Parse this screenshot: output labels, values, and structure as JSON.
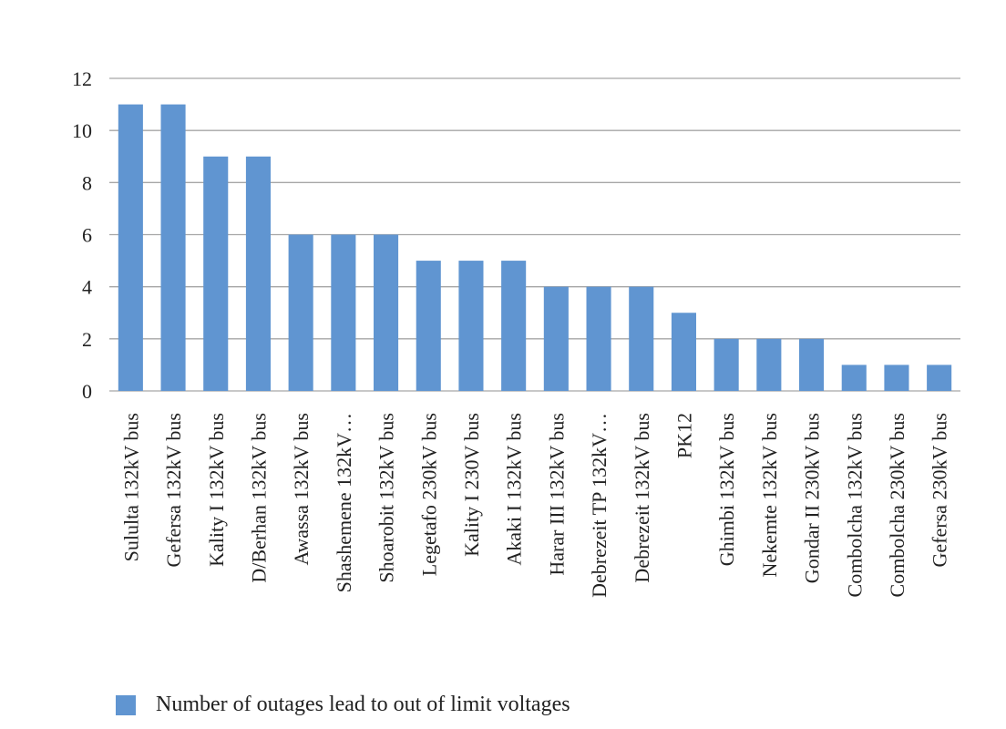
{
  "chart_data": {
    "type": "bar",
    "categories": [
      "Sululta 132kV bus",
      "Gefersa 132kV bus",
      "Kality I 132kV bus",
      "D/Berhan 132kV bus",
      "Awassa 132kV bus",
      "Shashemene 132kV…",
      "Shoarobit 132kV bus",
      "Legetafo 230kV bus",
      "Kality I 230V bus",
      "Akaki I 132kV bus",
      "Harar III 132kV bus",
      "Debrezeit TP 132kV…",
      "Debrezeit 132kV bus",
      "PK12",
      "Ghimbi 132kV bus",
      "Nekemte 132kV bus",
      "Gondar II 230kV bus",
      "Combolcha 132kV bus",
      "Combolcha 230kV bus",
      "Gefersa 230kV bus"
    ],
    "series": [
      {
        "name": "Number of outages lead to out of limit voltages",
        "values": [
          11,
          11,
          9,
          9,
          6,
          6,
          6,
          5,
          5,
          5,
          4,
          4,
          4,
          3,
          2,
          2,
          2,
          1,
          1,
          1
        ]
      }
    ],
    "ylim": [
      0,
      12
    ],
    "yticks": [
      0,
      2,
      4,
      6,
      8,
      10,
      12
    ],
    "grid": true,
    "legend_position": "bottom-left",
    "bar_color": "#6095d1",
    "grid_color": "#a6a6a6"
  }
}
